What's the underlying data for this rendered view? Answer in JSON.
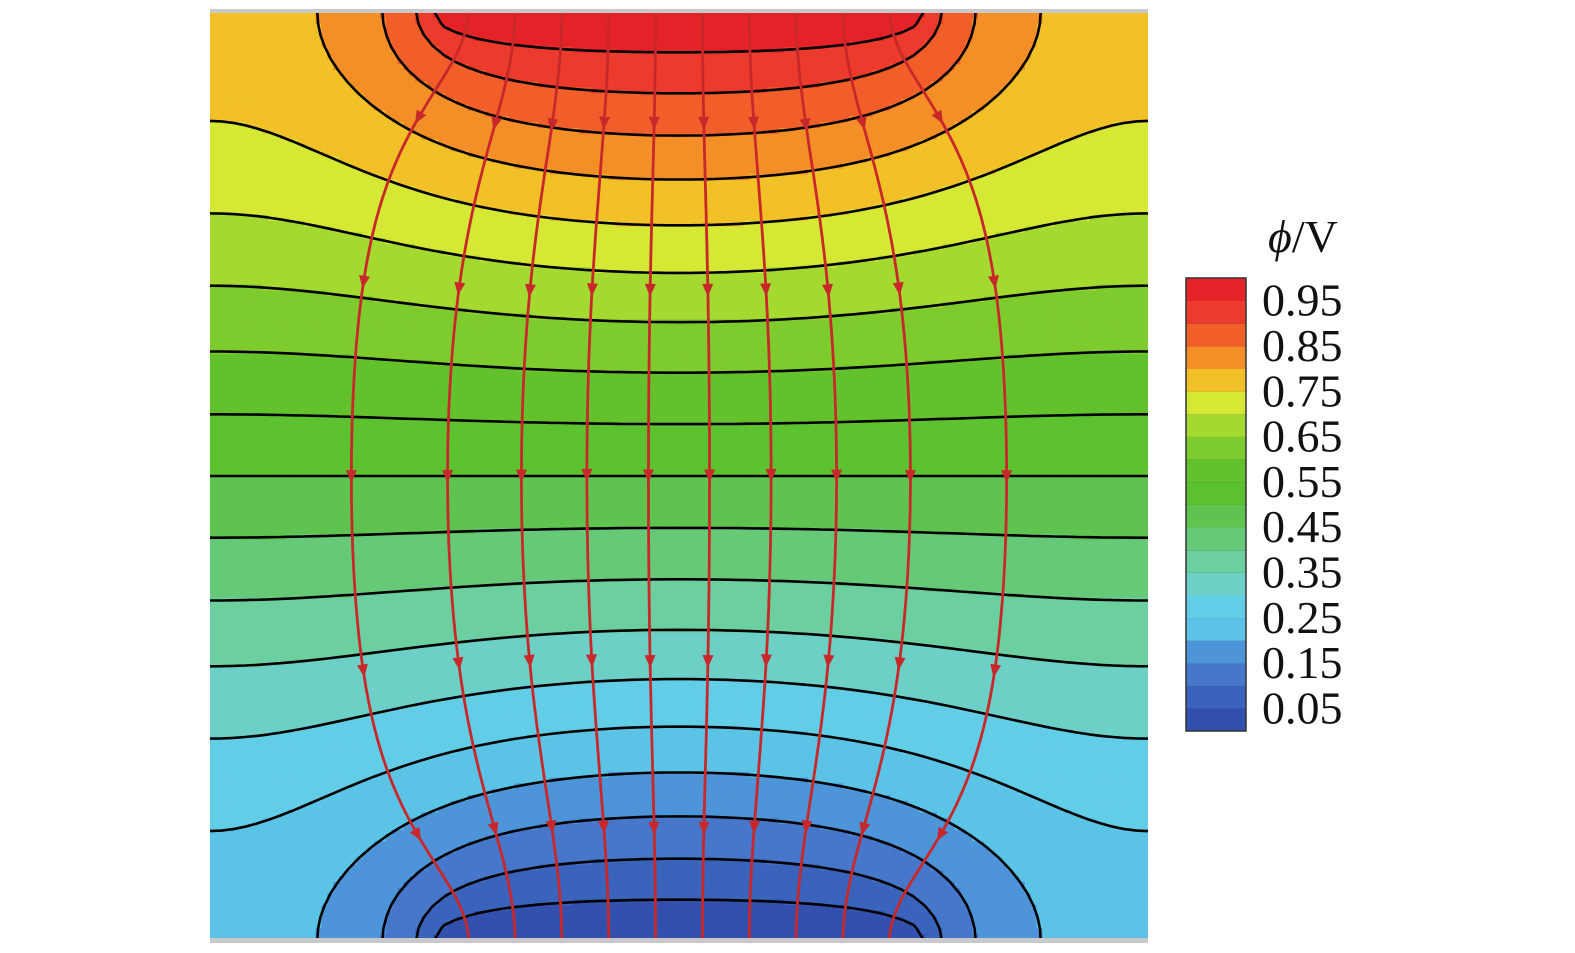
{
  "chart_data": {
    "type": "heatmap",
    "title": "",
    "xlabel": "",
    "ylabel": "",
    "colorbar": {
      "title_symbol": "ϕ",
      "title_unit": "/V",
      "tick_labels": [
        "0.95",
        "0.85",
        "0.75",
        "0.65",
        "0.55",
        "0.45",
        "0.35",
        "0.25",
        "0.15",
        "0.05"
      ],
      "tick_values": [
        0.95,
        0.85,
        0.75,
        0.65,
        0.55,
        0.45,
        0.35,
        0.25,
        0.15,
        0.05
      ],
      "range": [
        0.0,
        1.0
      ],
      "levels": [
        0.0,
        0.05,
        0.1,
        0.15,
        0.2,
        0.25,
        0.3,
        0.35,
        0.4,
        0.45,
        0.5,
        0.55,
        0.6,
        0.65,
        0.7,
        0.75,
        0.8,
        0.85,
        0.9,
        0.95,
        1.0
      ],
      "level_colors": [
        "#3350ae",
        "#3a63bc",
        "#4677cb",
        "#4d94d9",
        "#5bc4e6",
        "#62cde6",
        "#6dd0c7",
        "#6ccf9f",
        "#66c978",
        "#5ec34f",
        "#5dc22f",
        "#63c22c",
        "#7ecb2e",
        "#a4d930",
        "#d5e834",
        "#f2c027",
        "#f38f26",
        "#f25e2a",
        "#ec3b2d",
        "#e52228"
      ],
      "placement": "right"
    },
    "field": {
      "description_units": "potential in V",
      "top_electrode_potential": 1.0,
      "bottom_electrode_potential": 0.0,
      "top_electrode_x_range": [
        0.25,
        0.75
      ],
      "bottom_electrode_x_range": [
        0.25,
        0.75
      ],
      "x_range": [
        0,
        1
      ],
      "y_range": [
        0,
        1
      ]
    },
    "contour_lines": {
      "color": "#000000",
      "levels": [
        0.05,
        0.1,
        0.15,
        0.2,
        0.25,
        0.3,
        0.35,
        0.4,
        0.45,
        0.5,
        0.55,
        0.6,
        0.65,
        0.7,
        0.75,
        0.8,
        0.85,
        0.9,
        0.95
      ]
    },
    "field_lines": {
      "color": "#c8282a",
      "count": 10,
      "direction": "top-to-bottom"
    },
    "grid": false,
    "legend": "none"
  }
}
